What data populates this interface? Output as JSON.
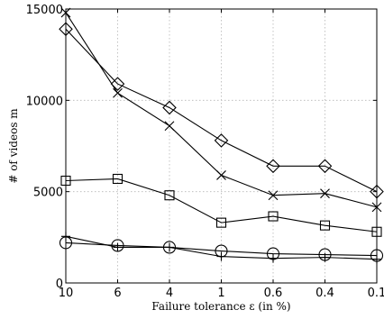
{
  "chart_data": {
    "type": "line",
    "xlabel": "Failure tolerance ε (in %)",
    "ylabel": "# of videos m",
    "categories": [
      "10",
      "6",
      "4",
      "1",
      "0.6",
      "0.4",
      "0.1"
    ],
    "ylim": [
      0,
      15000
    ],
    "yticks": [
      0,
      5000,
      10000,
      15000
    ],
    "grid": true,
    "legend": "none",
    "series": [
      {
        "marker": "diamond",
        "values": [
          13900,
          10900,
          9600,
          7800,
          6400,
          6400,
          5000
        ]
      },
      {
        "marker": "x",
        "values": [
          14800,
          10400,
          8600,
          5900,
          4800,
          4900,
          4150
        ]
      },
      {
        "marker": "square",
        "values": [
          5600,
          5700,
          4800,
          3300,
          3650,
          3150,
          2800
        ]
      },
      {
        "marker": "circle",
        "values": [
          2200,
          2050,
          1950,
          1750,
          1600,
          1550,
          1500
        ]
      },
      {
        "marker": "plus",
        "values": [
          2550,
          1950,
          1950,
          1450,
          1350,
          1400,
          1300
        ]
      }
    ]
  }
}
